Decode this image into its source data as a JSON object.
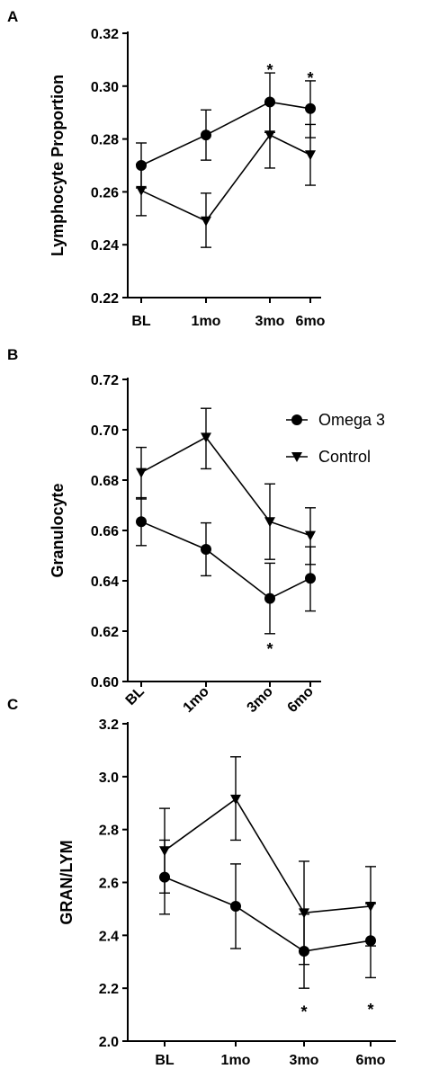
{
  "chart_data": [
    {
      "type": "line",
      "panel_label": "A",
      "title": "",
      "xlabel": "",
      "ylabel": "Lymphocyte Proportion",
      "categories": [
        "BL",
        "1mo",
        "3mo",
        "6mo"
      ],
      "ylim": [
        0.22,
        0.32
      ],
      "yticks": [
        0.22,
        0.24,
        0.26,
        0.28,
        0.3,
        0.32
      ],
      "ytick_labels": [
        "0.22",
        "0.24",
        "0.26",
        "0.28",
        "0.30",
        "0.32"
      ],
      "series": [
        {
          "marker": "circle",
          "values": [
            0.27,
            0.2815,
            0.294,
            0.2915
          ],
          "err_low": [
            0.2615,
            0.272,
            0.2825,
            0.2805
          ],
          "err_high": [
            0.2785,
            0.291,
            0.305,
            0.302
          ]
        },
        {
          "marker": "triangle-down",
          "values": [
            0.2605,
            0.249,
            0.2815,
            0.274
          ],
          "err_low": [
            0.251,
            0.239,
            0.269,
            0.2625
          ],
          "err_high": [
            0.2705,
            0.2595,
            0.2935,
            0.2855
          ]
        }
      ],
      "annotations": [
        {
          "text": "*",
          "category": "3mo",
          "y": 0.307
        },
        {
          "text": "*",
          "category": "6mo",
          "y": 0.304
        }
      ],
      "legend": null,
      "grid": false,
      "rotated_xticks": false
    },
    {
      "type": "line",
      "panel_label": "B",
      "title": "",
      "xlabel": "",
      "ylabel": "Granulocyte",
      "categories": [
        "BL",
        "1mo",
        "3mo",
        "6mo"
      ],
      "ylim": [
        0.6,
        0.72
      ],
      "yticks": [
        0.6,
        0.62,
        0.64,
        0.66,
        0.68,
        0.7,
        0.72
      ],
      "ytick_labels": [
        "0.60",
        "0.62",
        "0.64",
        "0.66",
        "0.68",
        "0.70",
        "0.72"
      ],
      "series": [
        {
          "name": "Omega 3",
          "marker": "circle",
          "values": [
            0.6635,
            0.6525,
            0.633,
            0.641
          ],
          "err_low": [
            0.654,
            0.642,
            0.619,
            0.628
          ],
          "err_high": [
            0.673,
            0.663,
            0.647,
            0.6535
          ]
        },
        {
          "name": "Control",
          "marker": "triangle-down",
          "values": [
            0.683,
            0.697,
            0.6635,
            0.658
          ],
          "err_low": [
            0.6725,
            0.6845,
            0.6485,
            0.6465
          ],
          "err_high": [
            0.693,
            0.7085,
            0.6785,
            0.669
          ]
        }
      ],
      "annotations": [
        {
          "text": "*",
          "category": "3mo",
          "y": 0.614
        }
      ],
      "legend": "top-right",
      "grid": false,
      "rotated_xticks": true
    },
    {
      "type": "line",
      "panel_label": "C",
      "title": "",
      "xlabel": "",
      "ylabel": "GRAN/LYM",
      "categories": [
        "BL",
        "1mo",
        "3mo",
        "6mo"
      ],
      "ylim": [
        2.0,
        3.2
      ],
      "yticks": [
        2.0,
        2.2,
        2.4,
        2.6,
        2.8,
        3.0,
        3.2
      ],
      "ytick_labels": [
        "2.0",
        "2.2",
        "2.4",
        "2.6",
        "2.8",
        "3.0",
        "3.2"
      ],
      "series": [
        {
          "marker": "circle",
          "values": [
            2.62,
            2.51,
            2.34,
            2.38
          ],
          "err_low": [
            2.48,
            2.35,
            2.2,
            2.24
          ],
          "err_high": [
            2.76,
            2.67,
            2.48,
            2.52
          ]
        },
        {
          "marker": "triangle-down",
          "values": [
            2.72,
            2.915,
            2.485,
            2.51
          ],
          "err_low": [
            2.56,
            2.76,
            2.29,
            2.36
          ],
          "err_high": [
            2.88,
            3.075,
            2.68,
            2.66
          ]
        }
      ],
      "annotations": [
        {
          "text": "*",
          "category": "3mo",
          "y": 2.12
        },
        {
          "text": "*",
          "category": "6mo",
          "y": 2.13
        }
      ],
      "legend": null,
      "grid": false,
      "rotated_xticks": false
    }
  ]
}
